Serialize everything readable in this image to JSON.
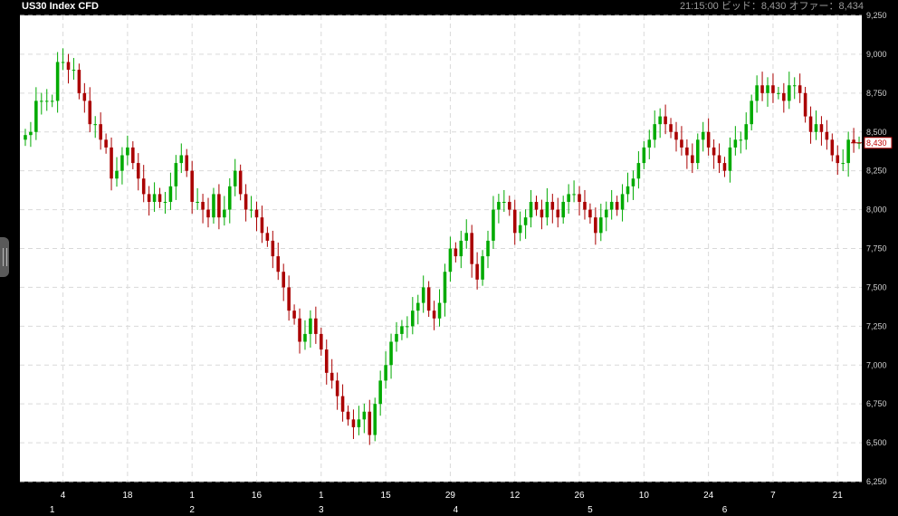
{
  "header": {
    "title": "US30 Index CFD",
    "time": "21:15:00",
    "bid_label": "ビッド：8,430",
    "offer_label": "オファー：8,434"
  },
  "colors": {
    "background": "#000000",
    "plot_bg": "#ffffff",
    "up": "#00aa00",
    "down": "#aa0000",
    "grid": "#d9d9d9"
  },
  "chart_data": {
    "type": "candlestick",
    "title": "US30 Index CFD",
    "ylim": [
      6250,
      9250
    ],
    "y_ticks": [
      6250,
      6500,
      6750,
      7000,
      7250,
      7500,
      7750,
      8000,
      8250,
      8500,
      8750,
      9000,
      9250
    ],
    "y_tick_labels": [
      "6,250",
      "6,500",
      "6,750",
      "7,000",
      "7,250",
      "7,500",
      "7,750",
      "8,000",
      "8,250",
      "8,500",
      "8,750",
      "9,000",
      "9,250"
    ],
    "x_tick_labels": [
      "4",
      "18",
      "1",
      "16",
      "1",
      "15",
      "29",
      "12",
      "26",
      "10",
      "24",
      "7",
      "21"
    ],
    "x_tick_bars": [
      7,
      19,
      31,
      43,
      55,
      67,
      79,
      91,
      103,
      115,
      127,
      139,
      151
    ],
    "month_labels": [
      "1",
      "2",
      "3",
      "4",
      "5",
      "6"
    ],
    "month_label_bars": [
      5,
      31,
      55,
      80,
      105,
      130
    ],
    "grid": true,
    "current_price_label": "8,430",
    "current_price": 8430,
    "closes": [
      8480,
      8500,
      8700,
      8700,
      8700,
      8700,
      8950,
      8950,
      8900,
      8900,
      8750,
      8700,
      8550,
      8550,
      8450,
      8400,
      8200,
      8250,
      8350,
      8400,
      8300,
      8200,
      8100,
      8050,
      8100,
      8050,
      8050,
      8150,
      8300,
      8350,
      8250,
      8050,
      8050,
      8000,
      7950,
      8100,
      7950,
      8000,
      8150,
      8250,
      8100,
      8000,
      8000,
      7950,
      7850,
      7800,
      7700,
      7600,
      7500,
      7350,
      7300,
      7150,
      7200,
      7300,
      7200,
      7100,
      6950,
      6900,
      6800,
      6700,
      6650,
      6600,
      6650,
      6700,
      6550,
      6750,
      6900,
      7000,
      7150,
      7200,
      7250,
      7250,
      7350,
      7400,
      7500,
      7350,
      7300,
      7400,
      7600,
      7750,
      7700,
      7800,
      7850,
      7650,
      7550,
      7700,
      7800,
      8000,
      8050,
      8050,
      8000,
      7850,
      7900,
      7950,
      8050,
      8000,
      7950,
      8050,
      8000,
      7950,
      8050,
      8100,
      8100,
      8050,
      8000,
      7950,
      7850,
      7950,
      8000,
      8050,
      8000,
      8100,
      8150,
      8200,
      8300,
      8400,
      8450,
      8550,
      8600,
      8550,
      8500,
      8450,
      8400,
      8350,
      8300,
      8450,
      8500,
      8400,
      8350,
      8300,
      8250,
      8400,
      8450,
      8450,
      8550,
      8700,
      8800,
      8750,
      8800,
      8750,
      8750,
      8700,
      8800,
      8800,
      8750,
      8600,
      8500,
      8550,
      8500,
      8450,
      8350,
      8300,
      8300,
      8450,
      8430,
      8430
    ]
  }
}
